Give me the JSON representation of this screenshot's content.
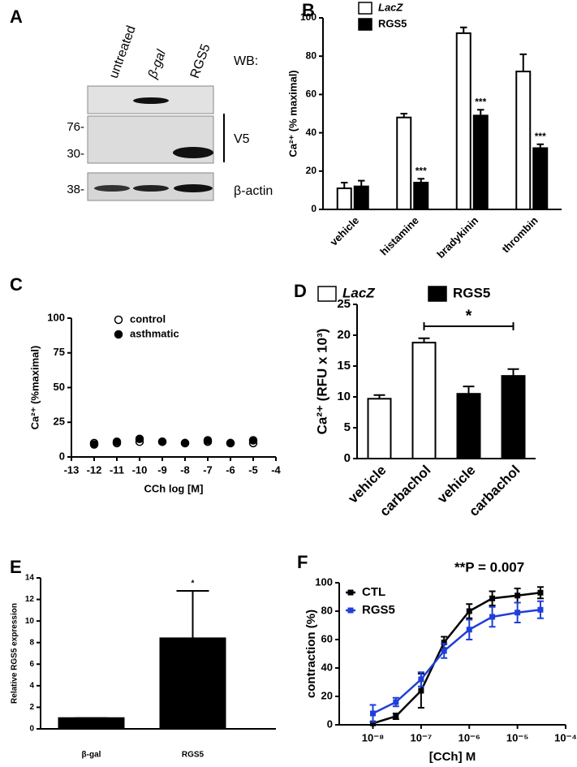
{
  "blot": {
    "panel": "A",
    "lanes": [
      "untreated",
      "β-gal",
      "RGS5"
    ],
    "wb_label": "WB:",
    "markers": [
      "76-",
      "30-",
      "38-"
    ],
    "labels": [
      "V5",
      "β-actin"
    ]
  },
  "chart_data": [
    {
      "panel": "B",
      "type": "bar",
      "ylabel": "Ca²⁺ (% maximal)",
      "categories": [
        "vehicle",
        "histamine",
        "bradykinin",
        "thrombin"
      ],
      "series": [
        {
          "name": "LacZ",
          "font_style": "italic",
          "color": "#ffffff",
          "values": [
            11,
            48,
            92,
            72
          ],
          "errors": [
            3,
            2,
            3,
            9
          ]
        },
        {
          "name": "RGS5",
          "color": "#000000",
          "values": [
            12,
            14,
            49,
            32
          ],
          "errors": [
            3,
            2,
            3,
            2
          ],
          "annotations": [
            null,
            "***",
            "***",
            "***"
          ]
        }
      ],
      "ylim": [
        0,
        100
      ],
      "yticks": [
        0,
        20,
        40,
        60,
        80,
        100
      ]
    },
    {
      "panel": "C",
      "type": "scatter",
      "ylabel": "Ca²⁺ (%maximal)",
      "xlabel": "CCh log [M]",
      "x": [
        -12,
        -11,
        -10,
        -9,
        -8,
        -7,
        -6,
        -5
      ],
      "series": [
        {
          "name": "control",
          "color": "#ffffff",
          "values": [
            10,
            10,
            11,
            11,
            10,
            11,
            10,
            10
          ]
        },
        {
          "name": "asthmatic",
          "color": "#000000",
          "values": [
            9,
            11,
            13,
            11,
            10,
            12,
            10,
            12
          ]
        }
      ],
      "xlim": [
        -13,
        -4
      ],
      "xticks": [
        -13,
        -12,
        -11,
        -10,
        -9,
        -8,
        -7,
        -6,
        -5,
        -4
      ],
      "ylim": [
        0,
        100
      ],
      "yticks": [
        0,
        25,
        50,
        75,
        100
      ]
    },
    {
      "panel": "D",
      "type": "bar",
      "ylabel": "Ca²⁺ (RFU x 10³)",
      "categories": [
        "vehicle",
        "carbachol",
        "vehicle",
        "carbachol"
      ],
      "series": [
        {
          "name": "LacZ",
          "font_style": "italic",
          "color": "#ffffff",
          "values": [
            9.7,
            18.8,
            null,
            null
          ],
          "errors": [
            0.6,
            0.7,
            null,
            null
          ]
        },
        {
          "name": "RGS5",
          "color": "#000000",
          "values": [
            null,
            null,
            10.5,
            13.4
          ],
          "errors": [
            null,
            null,
            1.2,
            1.1
          ]
        }
      ],
      "comparison": "*",
      "ylim": [
        0,
        25
      ],
      "yticks": [
        0,
        5,
        10,
        15,
        20,
        25
      ]
    },
    {
      "panel": "E",
      "type": "bar",
      "ylabel": "Relative RGS5 expression",
      "categories": [
        "β-gal",
        "RGS5"
      ],
      "values": [
        1,
        8.4
      ],
      "errors": [
        0,
        4.4
      ],
      "annotations": [
        null,
        "*"
      ],
      "color": "#000000",
      "ylim": [
        0,
        14
      ],
      "yticks": [
        0,
        2,
        4,
        6,
        8,
        10,
        12,
        14
      ]
    },
    {
      "panel": "F",
      "type": "line",
      "ylabel": "contraction (%)",
      "xlabel": "[CCh] M",
      "annotation": "**P = 0.007",
      "x": [
        1e-08,
        3e-08,
        1e-07,
        3e-07,
        1e-06,
        3e-06,
        1e-05,
        3e-05
      ],
      "series": [
        {
          "name": "CTL",
          "color": "#000000",
          "values": [
            1,
            6,
            24,
            58,
            80,
            89,
            91,
            93
          ],
          "errors": [
            1,
            2,
            12,
            4,
            5,
            5,
            5,
            4
          ]
        },
        {
          "name": "RGS5",
          "color": "#1f3fd8",
          "values": [
            8,
            16,
            32,
            52,
            67,
            76,
            79,
            81
          ],
          "errors": [
            6,
            3,
            5,
            5,
            7,
            7,
            7,
            6
          ]
        }
      ],
      "xscale": "log",
      "xlim": [
        2e-09,
        0.0001
      ],
      "xticks": [
        {
          "value": 1e-08,
          "label": "10⁻⁸"
        },
        {
          "value": 1e-07,
          "label": "10⁻⁷"
        },
        {
          "value": 1e-06,
          "label": "10⁻⁶"
        },
        {
          "value": 1e-05,
          "label": "10⁻⁵"
        },
        {
          "value": 0.0001,
          "label": "10⁻⁴"
        }
      ],
      "ylim": [
        0,
        100
      ],
      "yticks": [
        0,
        20,
        40,
        60,
        80,
        100
      ]
    }
  ]
}
